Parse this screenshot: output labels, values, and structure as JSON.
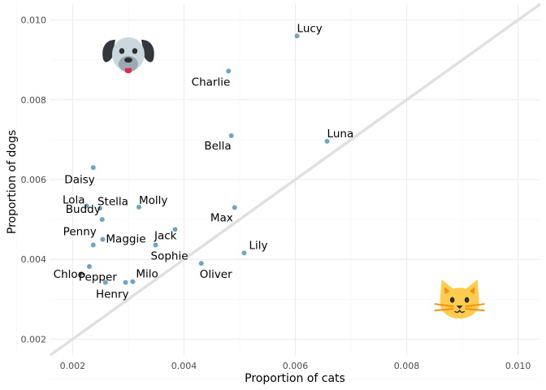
{
  "chart_data": {
    "type": "scatter",
    "xlabel": "Proportion of cats",
    "ylabel": "Proportion of dogs",
    "xlim": [
      0.0016,
      0.0104
    ],
    "ylim": [
      0.0016,
      0.0104
    ],
    "x_ticks": [
      "0.002",
      "0.004",
      "0.006",
      "0.008",
      "0.010"
    ],
    "y_ticks": [
      "0.002",
      "0.004",
      "0.006",
      "0.008",
      "0.010"
    ],
    "grid": true,
    "reference_line": {
      "slope": 1,
      "intercept": 0,
      "color": "#e0e0e0"
    },
    "point_color": "#6fa6c6",
    "points": [
      {
        "name": "Lucy",
        "x": 0.00603,
        "y": 0.0096
      },
      {
        "name": "Charlie",
        "x": 0.0048,
        "y": 0.00872
      },
      {
        "name": "Luna",
        "x": 0.00657,
        "y": 0.00696
      },
      {
        "name": "Bella",
        "x": 0.00485,
        "y": 0.0071
      },
      {
        "name": "Daisy",
        "x": 0.00237,
        "y": 0.0063
      },
      {
        "name": "Lola",
        "x": 0.00225,
        "y": 0.00534
      },
      {
        "name": "Stella",
        "x": 0.00249,
        "y": 0.00528
      },
      {
        "name": "Molly",
        "x": 0.00319,
        "y": 0.00531
      },
      {
        "name": "Max",
        "x": 0.00491,
        "y": 0.0053
      },
      {
        "name": "Buddy",
        "x": 0.00253,
        "y": 0.005
      },
      {
        "name": "Maggie",
        "x": 0.00254,
        "y": 0.0045
      },
      {
        "name": "Jack",
        "x": 0.00384,
        "y": 0.00475
      },
      {
        "name": "Penny",
        "x": 0.00237,
        "y": 0.00436
      },
      {
        "name": "Sophie",
        "x": 0.00349,
        "y": 0.00436
      },
      {
        "name": "Lily",
        "x": 0.00508,
        "y": 0.00416
      },
      {
        "name": "Oliver",
        "x": 0.00431,
        "y": 0.0039
      },
      {
        "name": "Chloe",
        "x": 0.0023,
        "y": 0.00382
      },
      {
        "name": "Pepper",
        "x": 0.00259,
        "y": 0.00342
      },
      {
        "name": "Milo",
        "x": 0.00308,
        "y": 0.00344
      },
      {
        "name": "Henry",
        "x": 0.00295,
        "y": 0.00342
      }
    ],
    "icons": [
      {
        "name": "dog-face-icon",
        "x": 0.003,
        "y": 0.0091
      },
      {
        "name": "cat-face-icon",
        "x": 0.00895,
        "y": 0.0029
      }
    ]
  }
}
